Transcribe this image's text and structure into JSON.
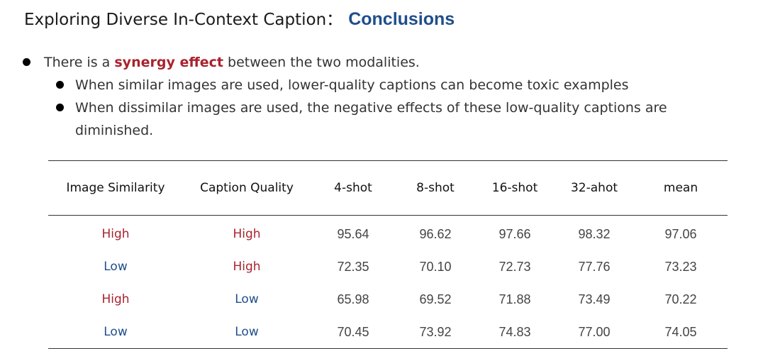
{
  "title": {
    "main": "Exploring Diverse In-Context Caption：",
    "accent": "Conclusions"
  },
  "bullets": {
    "b1_pre": "There is a ",
    "b1_highlight": "synergy effect",
    "b1_post": " between the two modalities.",
    "sub1": "When similar images are used, lower-quality captions can become toxic examples",
    "sub2": "When dissimilar images are used, the negative effects of these low-quality captions are diminished."
  },
  "colors": {
    "high": "#a8232f",
    "low": "#1f4e8c"
  },
  "table": {
    "headers": [
      "Image Similarity",
      "Caption Quality",
      "4-shot",
      "8-shot",
      "16-shot",
      "32-ahot",
      "mean"
    ],
    "rows": [
      {
        "sim": "High",
        "cap": "High",
        "v": [
          "95.64",
          "96.62",
          "97.66",
          "98.32",
          "97.06"
        ]
      },
      {
        "sim": "Low",
        "cap": "High",
        "v": [
          "72.35",
          "70.10",
          "72.73",
          "77.76",
          "73.23"
        ]
      },
      {
        "sim": "High",
        "cap": "Low",
        "v": [
          "65.98",
          "69.52",
          "71.88",
          "73.49",
          "70.22"
        ]
      },
      {
        "sim": "Low",
        "cap": "Low",
        "v": [
          "70.45",
          "73.92",
          "74.83",
          "77.00",
          "74.05"
        ]
      }
    ]
  }
}
